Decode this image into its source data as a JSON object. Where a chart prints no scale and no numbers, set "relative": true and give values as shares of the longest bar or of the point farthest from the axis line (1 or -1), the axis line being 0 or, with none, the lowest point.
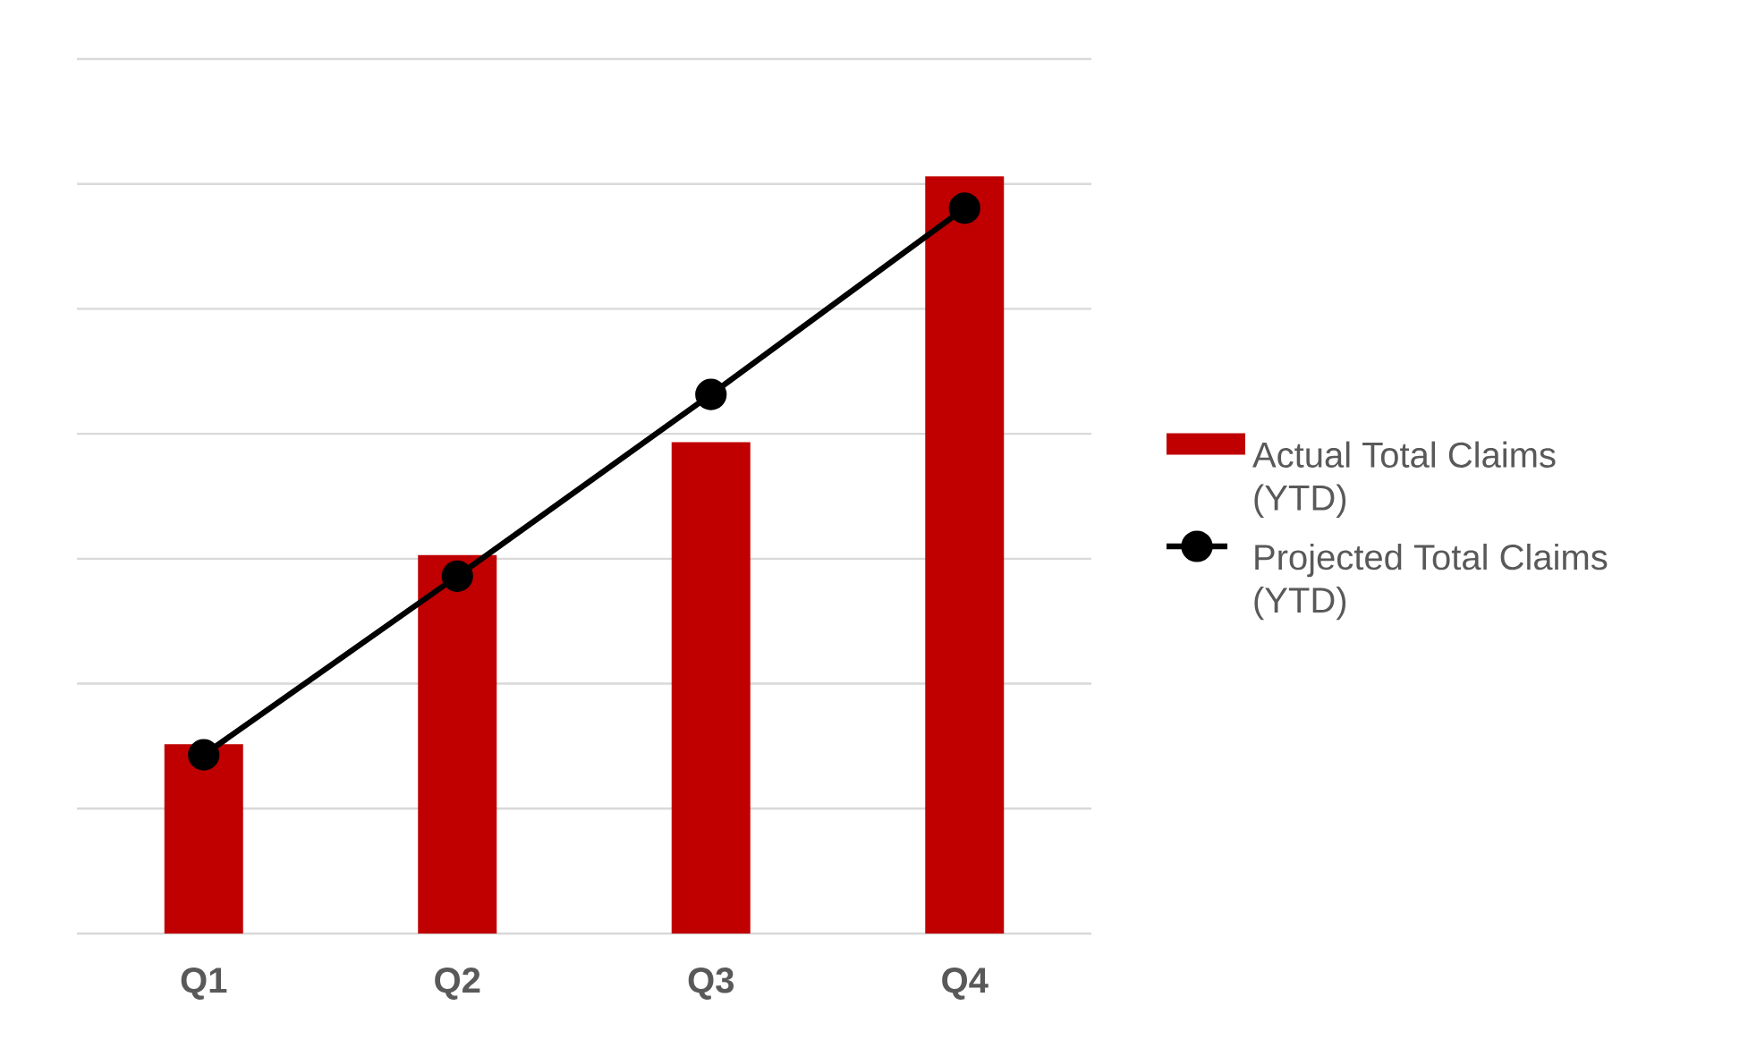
{
  "chart_data": {
    "type": "bar",
    "relative": true,
    "categories": [
      "Q1",
      "Q2",
      "Q3",
      "Q4"
    ],
    "series": [
      {
        "name": "Actual Total Claims (YTD)",
        "color": "#c00000",
        "values": [
          0.25,
          0.5,
          0.649,
          1.0
        ]
      },
      {
        "name": "Projected Total Claims (YTD)",
        "type": "line",
        "color": "#000000",
        "values": [
          0.236,
          0.472,
          0.712,
          0.958
        ]
      }
    ],
    "grid": "y",
    "legend": "right",
    "marker": "circle",
    "line_style": "solid"
  }
}
